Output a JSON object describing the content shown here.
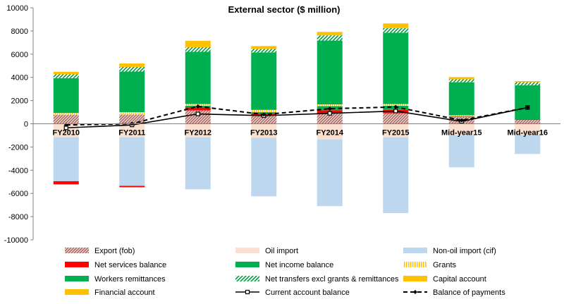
{
  "chart_data": {
    "type": "bar",
    "stacked": true,
    "title": "External sector ($ million)",
    "xlabel": "",
    "ylabel": "",
    "ylim": [
      -10000,
      10000
    ],
    "yticks": [
      -10000,
      -8000,
      -6000,
      -4000,
      -2000,
      0,
      2000,
      4000,
      6000,
      8000,
      10000
    ],
    "categories": [
      "FY2010",
      "FY2011",
      "FY2012",
      "FY2013",
      "FY2014",
      "FY2015",
      "Mid-year15",
      "Mid-year16"
    ],
    "series": [
      {
        "name": "Export (fob)",
        "kind": "bar",
        "color": "#c99a94",
        "pattern": "export",
        "values": [
          780,
          800,
          1150,
          750,
          870,
          900,
          580,
          330
        ]
      },
      {
        "name": "Oil import",
        "kind": "bar",
        "color": "#fbe0cf",
        "pattern": "solid",
        "values": [
          -1150,
          -1150,
          -1150,
          -1200,
          -1350,
          -1150,
          -1000,
          -950
        ]
      },
      {
        "name": "Non-oil import (cif)",
        "kind": "bar",
        "color": "#bdd7ee",
        "pattern": "solid",
        "values": [
          -3800,
          -4200,
          -4500,
          -5050,
          -5750,
          -6550,
          -2750,
          -1650
        ]
      },
      {
        "name": "Net services balance",
        "kind": "bar",
        "color": "#ff0000",
        "pattern": "solid",
        "values": [
          -250,
          -100,
          250,
          100,
          300,
          300,
          50,
          50
        ]
      },
      {
        "name": "Net income balance",
        "kind": "bar",
        "color": "#00b050",
        "pattern": "solid",
        "values": [
          -20,
          -20,
          150,
          150,
          350,
          350,
          0,
          0
        ]
      },
      {
        "name": "Grants",
        "kind": "bar",
        "color": "#ffcc00",
        "pattern": "grants",
        "values": [
          150,
          200,
          150,
          200,
          150,
          150,
          100,
          0
        ]
      },
      {
        "name": "Workers remittances",
        "kind": "bar",
        "color": "#00b050",
        "pattern": "solid",
        "values": [
          3000,
          3500,
          4500,
          4950,
          5500,
          6150,
          2850,
          2950
        ]
      },
      {
        "name": "Net transfers excl grants & remittances",
        "kind": "bar",
        "color": "#00a040",
        "pattern": "netrans",
        "values": [
          350,
          400,
          400,
          300,
          450,
          400,
          250,
          250
        ]
      },
      {
        "name": "Capital account",
        "kind": "bar",
        "color": "#ffc000",
        "pattern": "solid",
        "values": [
          200,
          300,
          550,
          250,
          300,
          400,
          200,
          100
        ]
      },
      {
        "name": "Financial account",
        "kind": "bar",
        "color": "#ffc000",
        "pattern": "solid",
        "values": [
          0,
          0,
          0,
          0,
          0,
          0,
          0,
          0
        ]
      },
      {
        "name": "Current account balance",
        "kind": "line",
        "color": "#000000",
        "dash": false,
        "values": [
          -350,
          -100,
          850,
          700,
          900,
          1100,
          200,
          1400
        ]
      },
      {
        "name": "Balance of payments",
        "kind": "line",
        "color": "#000000",
        "dash": true,
        "values": [
          -100,
          0,
          1500,
          800,
          1300,
          1450,
          300,
          1400
        ]
      }
    ],
    "legend": {
      "position": "bottom",
      "columns": 3
    }
  }
}
